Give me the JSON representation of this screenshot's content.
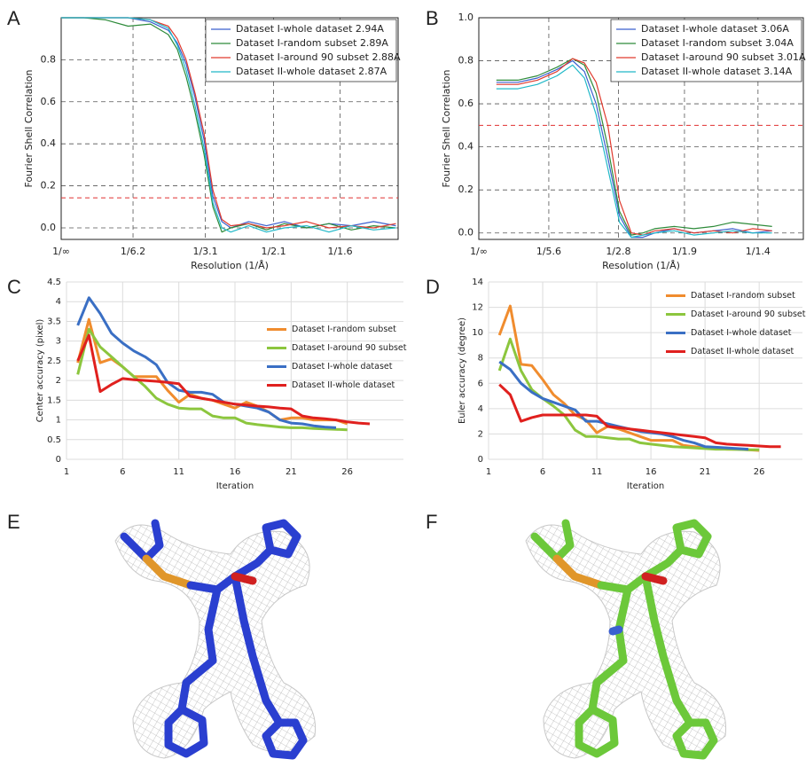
{
  "chart_data": [
    {
      "type": "line",
      "panel": "A",
      "xlabel": "Resolution (1/Å)",
      "ylabel": "Fourier Shell Correlation",
      "x": [
        0,
        0.05,
        0.1,
        0.15,
        0.2,
        0.24,
        0.26,
        0.28,
        0.3,
        0.32,
        0.34,
        0.36,
        0.38,
        0.42,
        0.46,
        0.5,
        0.55,
        0.6,
        0.65,
        0.7,
        0.75
      ],
      "xlim": [
        0,
        0.755
      ],
      "ylim": [
        -0.055,
        1.0
      ],
      "xticks": [
        {
          "value": 0,
          "label": "1/∞"
        },
        {
          "value": 0.161,
          "label": "1/6.2"
        },
        {
          "value": 0.323,
          "label": "1/3.1"
        },
        {
          "value": 0.476,
          "label": "1/2.1"
        },
        {
          "value": 0.625,
          "label": "1/1.6"
        }
      ],
      "yticks": [
        {
          "value": 0,
          "label": "0.0"
        },
        0.2,
        0.4,
        0.6,
        0.8
      ],
      "grid": "dashed",
      "frame": true,
      "threshold": 0.143,
      "threshold_color": "#e03030",
      "legend": "upper right",
      "series": [
        {
          "name": "Dataset I-whole dataset 2.94A",
          "color": "#3a5fcd",
          "values": [
            1,
            1,
            1,
            1,
            0.98,
            0.94,
            0.88,
            0.78,
            0.62,
            0.42,
            0.15,
            0.03,
            0.0,
            0.03,
            0.01,
            0.03,
            0.0,
            0.02,
            0.01,
            0.03,
            0.01
          ]
        },
        {
          "name": "Dataset I-random subset 2.89A",
          "color": "#2e8b3a",
          "values": [
            1,
            1,
            0.99,
            0.96,
            0.97,
            0.92,
            0.85,
            0.72,
            0.55,
            0.35,
            0.1,
            -0.02,
            0.0,
            0.02,
            -0.01,
            0.02,
            0.0,
            0.02,
            -0.01,
            0.01,
            0.0
          ]
        },
        {
          "name": "Dataset I-around 90 subset 2.88A",
          "color": "#e03a2e",
          "values": [
            1,
            1,
            1,
            1,
            0.99,
            0.96,
            0.9,
            0.8,
            0.64,
            0.45,
            0.18,
            0.04,
            0.01,
            0.02,
            0.0,
            0.01,
            0.03,
            0.0,
            0.01,
            0.0,
            0.02
          ]
        },
        {
          "name": "Dataset II-whole dataset 2.87A",
          "color": "#20b8c8",
          "values": [
            1,
            1,
            1,
            1,
            0.99,
            0.95,
            0.87,
            0.75,
            0.58,
            0.38,
            0.12,
            0.0,
            -0.02,
            0.01,
            -0.02,
            0.0,
            0.01,
            -0.02,
            0.01,
            -0.01,
            0.0
          ]
        }
      ]
    },
    {
      "type": "line",
      "panel": "B",
      "xlabel": "Resolution (1/Å)",
      "ylabel": "Fourier Shell Correlation",
      "x": [
        0.045,
        0.1,
        0.15,
        0.2,
        0.24,
        0.27,
        0.3,
        0.33,
        0.36,
        0.39,
        0.42,
        0.45,
        0.5,
        0.55,
        0.6,
        0.65,
        0.7,
        0.75
      ],
      "xlim": [
        0,
        0.83
      ],
      "ylim": [
        -0.03,
        1.0
      ],
      "xticks": [
        {
          "value": 0,
          "label": "1/∞"
        },
        {
          "value": 0.179,
          "label": "1/5.6"
        },
        {
          "value": 0.357,
          "label": "1/2.8"
        },
        {
          "value": 0.526,
          "label": "1/1.9"
        },
        {
          "value": 0.714,
          "label": "1/1.4"
        }
      ],
      "yticks": [
        {
          "value": 0,
          "label": "0.0"
        },
        0.2,
        0.4,
        0.6,
        0.8,
        {
          "value": 1,
          "label": "1.0"
        }
      ],
      "grid": "dashed",
      "frame": true,
      "threshold": 0.5,
      "threshold_color": "#e03030",
      "legend": "upper right",
      "series": [
        {
          "name": "Dataset I-whole dataset 3.06A",
          "color": "#3a5fcd",
          "values": [
            0.7,
            0.7,
            0.72,
            0.76,
            0.8,
            0.75,
            0.6,
            0.35,
            0.08,
            -0.02,
            -0.02,
            0.0,
            0.02,
            0.0,
            0.01,
            0.02,
            0.0,
            0.01
          ]
        },
        {
          "name": "Dataset I-random subset 3.04A",
          "color": "#2e8b3a",
          "values": [
            0.71,
            0.71,
            0.73,
            0.77,
            0.81,
            0.78,
            0.65,
            0.4,
            0.1,
            -0.01,
            0.0,
            0.02,
            0.03,
            0.02,
            0.03,
            0.05,
            0.04,
            0.03
          ]
        },
        {
          "name": "Dataset I-around 90 subset 3.01A",
          "color": "#e03a2e",
          "values": [
            0.69,
            0.69,
            0.71,
            0.75,
            0.81,
            0.79,
            0.7,
            0.5,
            0.15,
            0.0,
            -0.01,
            0.01,
            0.02,
            0.0,
            0.01,
            0.0,
            0.02,
            0.01
          ]
        },
        {
          "name": "Dataset II-whole dataset 3.14A",
          "color": "#20b8c8",
          "values": [
            0.67,
            0.67,
            0.69,
            0.73,
            0.78,
            0.72,
            0.55,
            0.3,
            0.05,
            -0.02,
            -0.01,
            0.0,
            0.01,
            -0.01,
            0.0,
            0.01,
            0.0,
            0.0
          ]
        }
      ]
    },
    {
      "type": "line",
      "panel": "C",
      "xlabel": "Iteration",
      "ylabel": "Center accuracy (pixel)",
      "x": [
        2,
        3,
        4,
        5,
        6,
        7,
        8,
        9,
        10,
        11,
        12,
        13,
        14,
        15,
        16,
        17,
        18,
        19,
        20,
        21,
        22,
        23,
        24,
        25,
        26,
        27,
        28
      ],
      "xlim": [
        1,
        31
      ],
      "ylim": [
        0,
        4.5
      ],
      "xticks": [
        1,
        6,
        11,
        16,
        21,
        26
      ],
      "yticks": [
        0,
        0.5,
        1,
        1.5,
        2,
        2.5,
        3,
        3.5,
        4,
        4.5
      ],
      "grid": "solid",
      "frame": false,
      "legend": "center right",
      "series": [
        {
          "name": "Dataset I-random subset",
          "color": "#f08c2e",
          "values": [
            2.45,
            3.55,
            2.45,
            2.55,
            2.35,
            2.1,
            2.1,
            2.1,
            1.75,
            1.45,
            1.65,
            1.55,
            1.5,
            1.4,
            1.3,
            1.45,
            1.35,
            1.2,
            1.0,
            1.05,
            1.05,
            1.0,
            1.0,
            1.0,
            0.9,
            null,
            null
          ]
        },
        {
          "name": "Dataset I-around 90 subset",
          "color": "#8cc63e",
          "values": [
            2.15,
            3.3,
            2.85,
            2.6,
            2.35,
            2.1,
            1.85,
            1.55,
            1.4,
            1.3,
            1.28,
            1.28,
            1.1,
            1.05,
            1.05,
            0.92,
            0.88,
            0.85,
            0.82,
            0.8,
            0.8,
            0.78,
            0.77,
            0.76,
            0.75,
            null,
            null
          ]
        },
        {
          "name": "Dataset I-whole dataset",
          "color": "#3a6fc4",
          "values": [
            3.4,
            4.1,
            3.7,
            3.2,
            2.95,
            2.75,
            2.6,
            2.4,
            1.95,
            1.75,
            1.7,
            1.7,
            1.65,
            1.45,
            1.4,
            1.35,
            1.3,
            1.2,
            1.0,
            0.92,
            0.9,
            0.85,
            0.82,
            0.8,
            null,
            null,
            null
          ]
        },
        {
          "name": "Dataset II-whole dataset",
          "color": "#e0201e",
          "values": [
            2.5,
            3.15,
            1.72,
            1.9,
            2.05,
            2.02,
            2.0,
            1.98,
            1.95,
            1.92,
            1.6,
            1.55,
            1.5,
            1.45,
            1.4,
            1.38,
            1.35,
            1.33,
            1.3,
            1.28,
            1.1,
            1.05,
            1.03,
            1.0,
            0.95,
            0.92,
            0.9
          ]
        }
      ]
    },
    {
      "type": "line",
      "panel": "D",
      "xlabel": "Iteration",
      "ylabel": "Euler accuracy (degree)",
      "x": [
        2,
        3,
        4,
        5,
        6,
        7,
        8,
        9,
        10,
        11,
        12,
        13,
        14,
        15,
        16,
        17,
        18,
        19,
        20,
        21,
        22,
        23,
        24,
        25,
        26,
        27,
        28
      ],
      "xlim": [
        1,
        30
      ],
      "ylim": [
        0,
        14
      ],
      "xticks": [
        1,
        6,
        11,
        16,
        21,
        26
      ],
      "yticks": [
        0,
        2,
        4,
        6,
        8,
        10,
        12,
        14
      ],
      "grid": "solid",
      "frame": false,
      "legend": "upper right",
      "series": [
        {
          "name": "Dataset I-random subset",
          "color": "#f08c2e",
          "values": [
            9.8,
            12.1,
            7.5,
            7.4,
            6.3,
            5.1,
            4.4,
            3.5,
            3.1,
            2.1,
            2.6,
            2.4,
            2.1,
            1.8,
            1.5,
            1.5,
            1.5,
            1.1,
            1.0,
            0.9,
            0.85,
            0.8,
            0.8,
            0.75,
            0.7,
            null,
            null
          ]
        },
        {
          "name": "Dataset I-around 90 subset",
          "color": "#8cc63e",
          "values": [
            7.0,
            9.5,
            7.0,
            5.5,
            4.8,
            4.2,
            3.5,
            2.3,
            1.8,
            1.8,
            1.7,
            1.6,
            1.6,
            1.3,
            1.2,
            1.1,
            1.0,
            0.95,
            0.9,
            0.85,
            0.8,
            0.8,
            0.78,
            0.75,
            0.75,
            null,
            null
          ]
        },
        {
          "name": "Dataset I-whole dataset",
          "color": "#3a6fc4",
          "values": [
            7.7,
            7.1,
            6.0,
            5.3,
            4.8,
            4.5,
            4.2,
            3.9,
            3.0,
            3.0,
            2.8,
            2.6,
            2.4,
            2.2,
            2.1,
            2.0,
            1.8,
            1.5,
            1.3,
            1.0,
            0.95,
            0.9,
            0.85,
            0.8,
            null,
            null,
            null
          ]
        },
        {
          "name": "Dataset II-whole dataset",
          "color": "#e0201e",
          "values": [
            5.9,
            5.1,
            3.0,
            3.3,
            3.5,
            3.5,
            3.5,
            3.5,
            3.5,
            3.4,
            2.6,
            2.5,
            2.4,
            2.3,
            2.2,
            2.1,
            2.0,
            1.9,
            1.8,
            1.7,
            1.3,
            1.2,
            1.15,
            1.1,
            1.05,
            1.0,
            1.0
          ]
        }
      ]
    }
  ],
  "panels": [
    {
      "label": "E"
    },
    {
      "label": "F"
    }
  ]
}
